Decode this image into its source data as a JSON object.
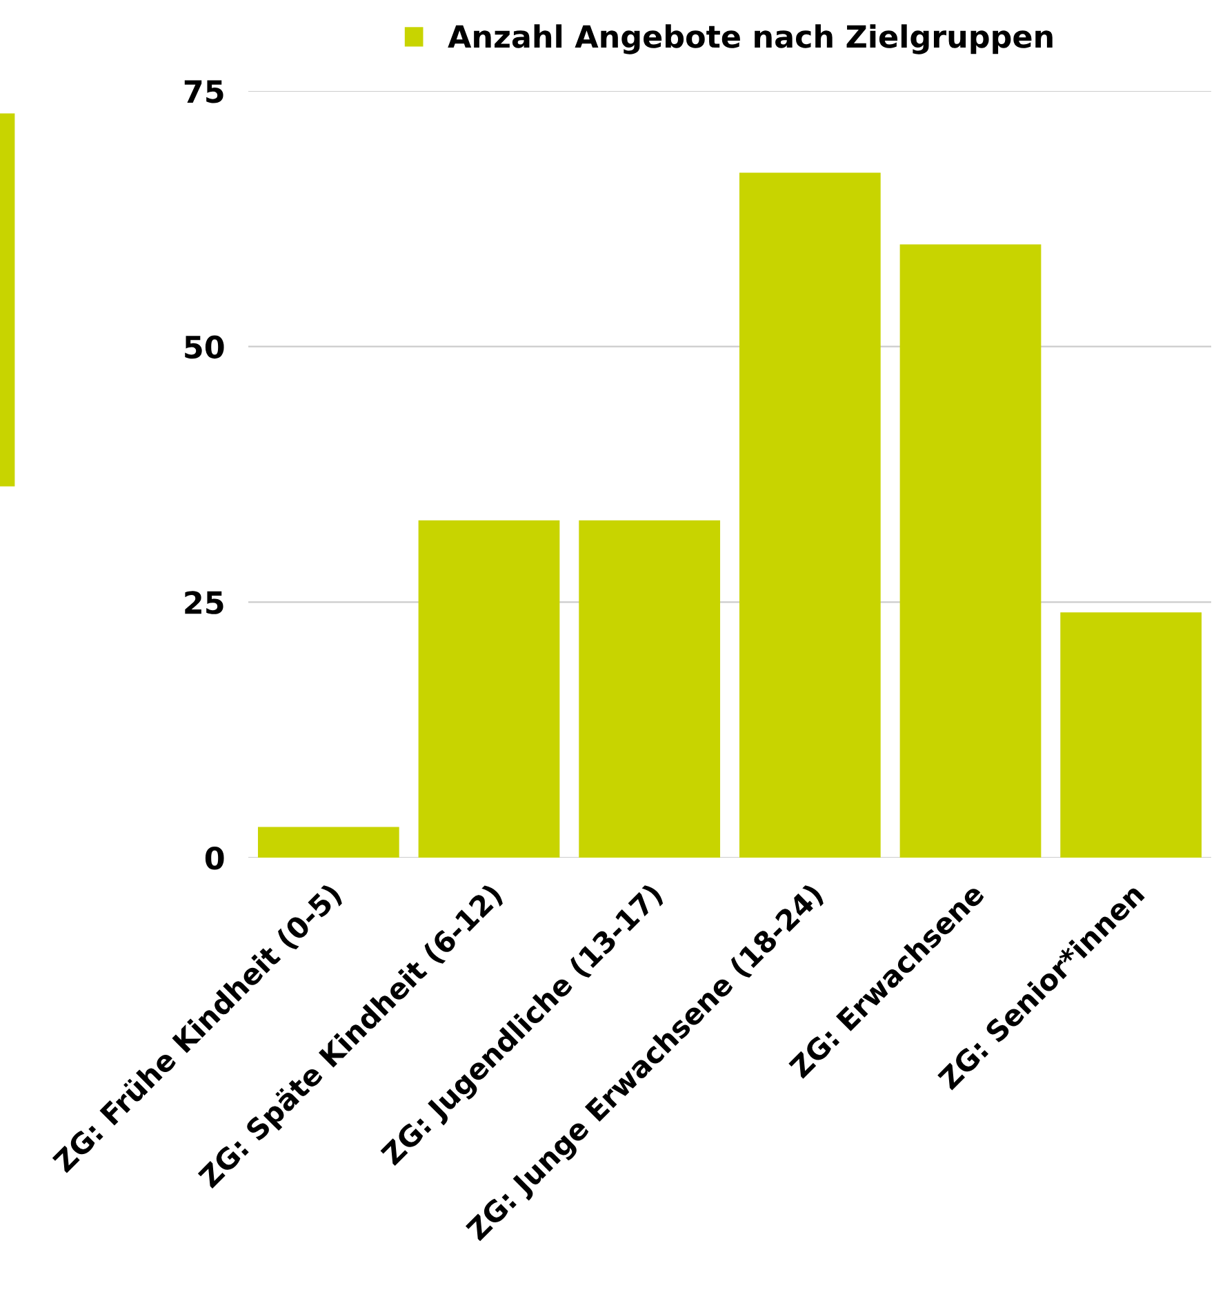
{
  "chart_data": {
    "type": "bar",
    "categories": [
      "ZG: Frühe Kindheit (0-5)",
      "ZG: Späte Kindheit (6-12)",
      "ZG: Jugendliche (13-17)",
      "ZG: Junge Erwachsene (18-24)",
      "ZG: Erwachsene",
      "ZG: Senior*innen"
    ],
    "series": [
      {
        "name": "Anzahl Angebote nach Zielgruppen",
        "color": "#c8d400",
        "values": [
          3,
          33,
          33,
          67,
          60,
          24
        ]
      }
    ],
    "ylim": [
      0,
      75
    ],
    "yticks": [
      0,
      25,
      50,
      75
    ],
    "grid": "y",
    "legend": "top"
  }
}
